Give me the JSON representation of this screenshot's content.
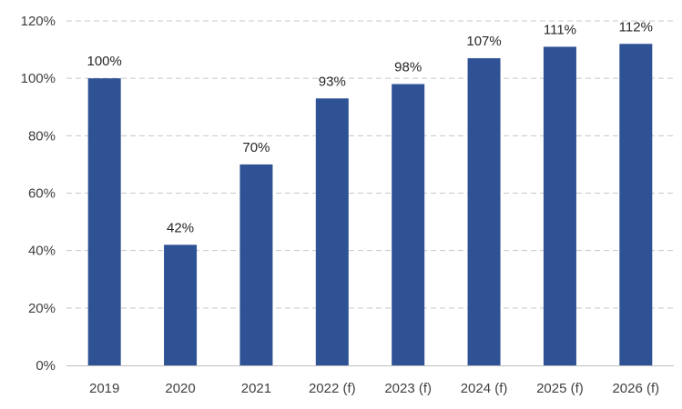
{
  "chart_data": {
    "type": "bar",
    "categories": [
      "2019",
      "2020",
      "2021",
      "2022 (f)",
      "2023 (f)",
      "2024 (f)",
      "2025 (f)",
      "2026 (f)"
    ],
    "values": [
      100,
      42,
      70,
      93,
      98,
      107,
      111,
      112
    ],
    "data_labels": [
      "100%",
      "42%",
      "70%",
      "93%",
      "98%",
      "107%",
      "111%",
      "112%"
    ],
    "y_ticks": [
      0,
      20,
      40,
      60,
      80,
      100,
      120
    ],
    "y_tick_labels": [
      "0%",
      "20%",
      "40%",
      "60%",
      "80%",
      "100%",
      "120%"
    ],
    "ylim": [
      0,
      120
    ],
    "title": "",
    "xlabel": "",
    "ylabel": "",
    "grid": "horizontal dashed",
    "legend": "none",
    "bar_color": "#2e5294"
  }
}
